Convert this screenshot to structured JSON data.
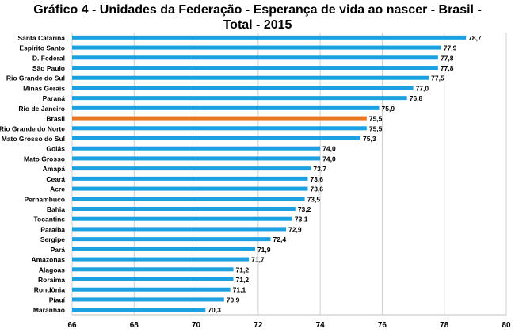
{
  "chart_data": {
    "type": "bar",
    "orientation": "horizontal",
    "title_line1": "Gráfico 4 - Unidades da Federação - Esperança de vida ao nascer - Brasil -",
    "title_line2": "Total - 2015",
    "categories": [
      "Santa Catarina",
      "Espírito Santo",
      "D. Federal",
      "São Paulo",
      "Rio Grande do Sul",
      "Minas Gerais",
      "Paraná",
      "Rio de Janeiro",
      "Brasil",
      "Rio Grande do Norte",
      "Mato Grosso do Sul",
      "Goiás",
      "Mato Grosso",
      "Amapá",
      "Ceará",
      "Acre",
      "Pernambuco",
      "Bahia",
      "Tocantins",
      "Paraíba",
      "Sergipe",
      "Pará",
      "Amazonas",
      "Alagoas",
      "Roraima",
      "Rondônia",
      "Piauí",
      "Maranhão"
    ],
    "values": [
      78.7,
      77.9,
      77.8,
      77.8,
      77.5,
      77.0,
      76.8,
      75.9,
      75.5,
      75.5,
      75.3,
      74.0,
      74.0,
      73.7,
      73.6,
      73.6,
      73.5,
      73.2,
      73.1,
      72.9,
      72.4,
      71.9,
      71.7,
      71.2,
      71.2,
      71.1,
      70.9,
      70.3
    ],
    "value_labels": [
      "78,7",
      "77,9",
      "77,8",
      "77,8",
      "77,5",
      "77,0",
      "76,8",
      "75,9",
      "75,5",
      "75,5",
      "75,3",
      "74,0",
      "74,0",
      "73,7",
      "73,6",
      "73,6",
      "73,5",
      "73,2",
      "73,1",
      "72,9",
      "72,4",
      "71,9",
      "71,7",
      "71,2",
      "71,2",
      "71,1",
      "70,9",
      "70,3"
    ],
    "highlight": "Brasil",
    "colors": {
      "bar": "#1BA1E2",
      "highlight": "#E87722",
      "grid": "#d0d0d0"
    },
    "xlim": [
      66,
      80
    ],
    "xticks": [
      66,
      68,
      70,
      72,
      74,
      76,
      78,
      80
    ],
    "grid": true
  }
}
